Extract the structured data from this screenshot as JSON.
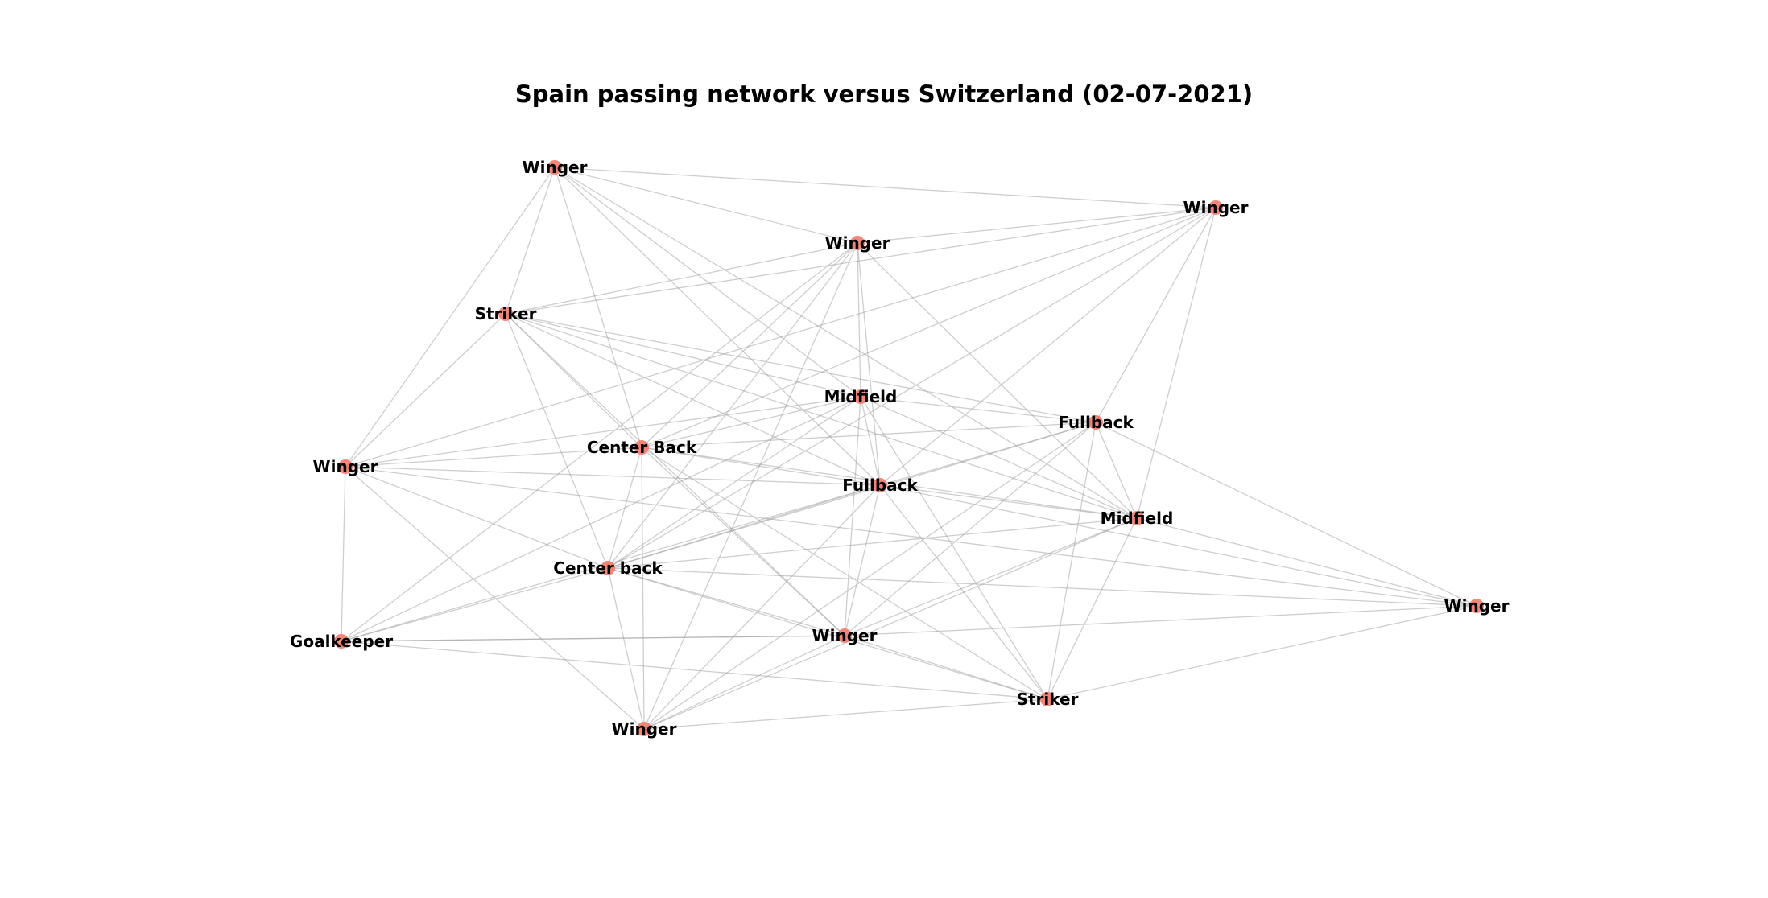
{
  "title": "Spain passing network versus Switzerland (02-07-2021)",
  "colors": {
    "node": "#f4796b",
    "edge": "#9e9e9e",
    "label": "#000000",
    "background": "#ffffff"
  },
  "nodes": [
    {
      "id": "n0",
      "label": "Winger"
    },
    {
      "id": "n1",
      "label": "Winger"
    },
    {
      "id": "n2",
      "label": "Winger"
    },
    {
      "id": "n3",
      "label": "Striker"
    },
    {
      "id": "n4",
      "label": "Midfield"
    },
    {
      "id": "n5",
      "label": "Fullback"
    },
    {
      "id": "n6",
      "label": "Center Back"
    },
    {
      "id": "n7",
      "label": "Winger"
    },
    {
      "id": "n8",
      "label": "Fullback"
    },
    {
      "id": "n9",
      "label": "Midfield"
    },
    {
      "id": "n10",
      "label": "Center back"
    },
    {
      "id": "n11",
      "label": "Winger"
    },
    {
      "id": "n12",
      "label": "Winger"
    },
    {
      "id": "n13",
      "label": "Goalkeeper"
    },
    {
      "id": "n14",
      "label": "Striker"
    },
    {
      "id": "n15",
      "label": "Winger"
    }
  ],
  "edges": [
    [
      "n0",
      "n1"
    ],
    [
      "n0",
      "n2"
    ],
    [
      "n0",
      "n3"
    ],
    [
      "n0",
      "n4"
    ],
    [
      "n0",
      "n6"
    ],
    [
      "n0",
      "n7"
    ],
    [
      "n0",
      "n8"
    ],
    [
      "n0",
      "n9"
    ],
    [
      "n1",
      "n2"
    ],
    [
      "n1",
      "n3"
    ],
    [
      "n1",
      "n5"
    ],
    [
      "n1",
      "n6"
    ],
    [
      "n1",
      "n8"
    ],
    [
      "n1",
      "n9"
    ],
    [
      "n1",
      "n10"
    ],
    [
      "n1",
      "n7"
    ],
    [
      "n2",
      "n3"
    ],
    [
      "n2",
      "n4"
    ],
    [
      "n2",
      "n6"
    ],
    [
      "n2",
      "n8"
    ],
    [
      "n2",
      "n10"
    ],
    [
      "n2",
      "n13"
    ],
    [
      "n2",
      "n15"
    ],
    [
      "n2",
      "n9"
    ],
    [
      "n3",
      "n4"
    ],
    [
      "n3",
      "n5"
    ],
    [
      "n3",
      "n6"
    ],
    [
      "n3",
      "n7"
    ],
    [
      "n3",
      "n8"
    ],
    [
      "n3",
      "n9"
    ],
    [
      "n3",
      "n10"
    ],
    [
      "n3",
      "n12"
    ],
    [
      "n4",
      "n5"
    ],
    [
      "n4",
      "n6"
    ],
    [
      "n4",
      "n7"
    ],
    [
      "n4",
      "n8"
    ],
    [
      "n4",
      "n9"
    ],
    [
      "n4",
      "n10"
    ],
    [
      "n4",
      "n12"
    ],
    [
      "n4",
      "n13"
    ],
    [
      "n4",
      "n14"
    ],
    [
      "n5",
      "n6"
    ],
    [
      "n5",
      "n8"
    ],
    [
      "n5",
      "n9"
    ],
    [
      "n5",
      "n10"
    ],
    [
      "n5",
      "n11"
    ],
    [
      "n5",
      "n12"
    ],
    [
      "n5",
      "n14"
    ],
    [
      "n5",
      "n15"
    ],
    [
      "n6",
      "n7"
    ],
    [
      "n6",
      "n8"
    ],
    [
      "n6",
      "n9"
    ],
    [
      "n6",
      "n10"
    ],
    [
      "n6",
      "n12"
    ],
    [
      "n6",
      "n14"
    ],
    [
      "n6",
      "n15"
    ],
    [
      "n7",
      "n8"
    ],
    [
      "n7",
      "n10"
    ],
    [
      "n7",
      "n11"
    ],
    [
      "n7",
      "n13"
    ],
    [
      "n7",
      "n15"
    ],
    [
      "n8",
      "n9"
    ],
    [
      "n8",
      "n10"
    ],
    [
      "n8",
      "n11"
    ],
    [
      "n8",
      "n12"
    ],
    [
      "n8",
      "n13"
    ],
    [
      "n8",
      "n14"
    ],
    [
      "n8",
      "n15"
    ],
    [
      "n9",
      "n10"
    ],
    [
      "n9",
      "n11"
    ],
    [
      "n9",
      "n12"
    ],
    [
      "n9",
      "n14"
    ],
    [
      "n9",
      "n15"
    ],
    [
      "n10",
      "n11"
    ],
    [
      "n10",
      "n12"
    ],
    [
      "n10",
      "n13"
    ],
    [
      "n10",
      "n14"
    ],
    [
      "n10",
      "n15"
    ],
    [
      "n11",
      "n12"
    ],
    [
      "n11",
      "n14"
    ],
    [
      "n12",
      "n13"
    ],
    [
      "n12",
      "n14"
    ],
    [
      "n12",
      "n15"
    ],
    [
      "n13",
      "n14"
    ],
    [
      "n13",
      "n12"
    ],
    [
      "n14",
      "n15"
    ]
  ]
}
